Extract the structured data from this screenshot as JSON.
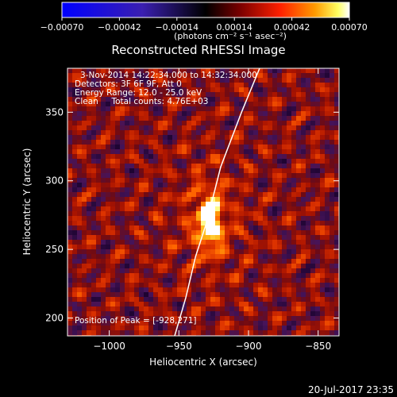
{
  "chart_data": {
    "type": "heatmap",
    "title": "Reconstructed RHESSI Image",
    "xlabel": "Heliocentric X (arcsec)",
    "ylabel": "Heliocentric Y (arcsec)",
    "xlim": [
      -1030,
      -835
    ],
    "ylim": [
      187,
      382
    ],
    "x_ticks": [
      {
        "value": -1000,
        "label": "−1000"
      },
      {
        "value": -950,
        "label": "−950"
      },
      {
        "value": -900,
        "label": "−900"
      },
      {
        "value": -850,
        "label": "−850"
      }
    ],
    "y_ticks": [
      {
        "value": 200,
        "label": "200"
      },
      {
        "value": 250,
        "label": "250"
      },
      {
        "value": 300,
        "label": "300"
      },
      {
        "value": 350,
        "label": "350"
      }
    ],
    "colorbar": {
      "range": [
        -0.0007,
        0.0007
      ],
      "ticks": [
        {
          "value": -0.0007,
          "label": "−0.00070"
        },
        {
          "value": -0.00042,
          "label": "−0.00042"
        },
        {
          "value": -0.00014,
          "label": "−0.00014"
        },
        {
          "value": 0.00014,
          "label": "0.00014"
        },
        {
          "value": 0.00042,
          "label": "0.00042"
        },
        {
          "value": 0.0007,
          "label": "0.00070"
        }
      ],
      "units_label": "(photons cm⁻² s⁻¹ asec⁻²)",
      "colors": [
        "#0000ff",
        "#3a1fb0",
        "#000000",
        "#7a0000",
        "#ff2000",
        "#ff9a00",
        "#ffff60",
        "#ffffff"
      ]
    },
    "annotations": [
      "3-Nov-2014 14:22:34.000 to 14:32:34.000",
      "Detectors: 3F 6F 9F, Att 0",
      "Energy Range: 12.0 - 25.0 keV",
      "Clean     Total counts: 4.76E+03"
    ],
    "peak": {
      "x": -928,
      "y": 271,
      "label": "Position of Peak = [-928,271]"
    },
    "limb_curve": [
      [
        -953,
        187
      ],
      [
        -945,
        215
      ],
      [
        -938,
        245
      ],
      [
        -930,
        270
      ],
      [
        -920,
        310
      ],
      [
        -905,
        350
      ],
      [
        -892,
        382
      ]
    ],
    "footer": "20-Jul-2017 23:35"
  }
}
